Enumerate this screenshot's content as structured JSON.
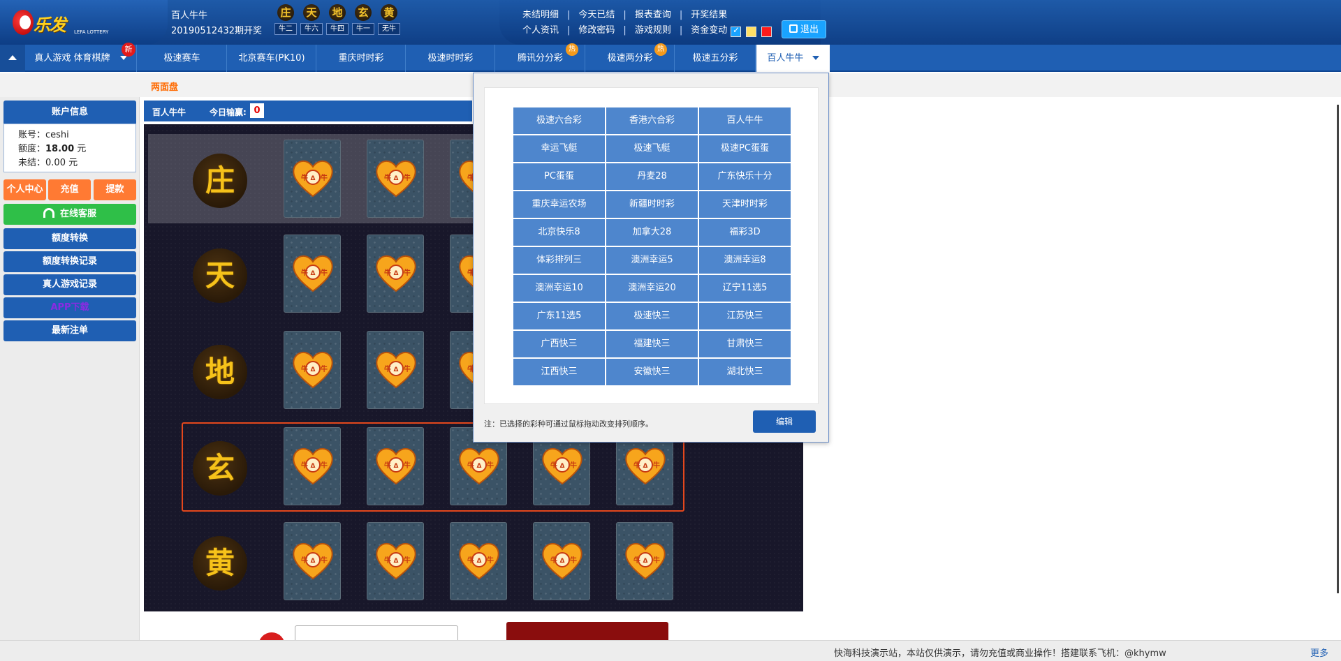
{
  "header": {
    "logo_text": "乐发",
    "logo_sub": "LEFA LOTTERY",
    "game_name": "百人牛牛",
    "draw_info": "20190512432期开奖",
    "faces": [
      {
        "top": "庄",
        "bottom": "牛二"
      },
      {
        "top": "天",
        "bottom": "牛六"
      },
      {
        "top": "地",
        "bottom": "牛四"
      },
      {
        "top": "玄",
        "bottom": "牛一"
      },
      {
        "top": "黄",
        "bottom": "无牛"
      }
    ],
    "links_row1": [
      "未结明细",
      "今天已结",
      "报表查询",
      "开奖结果"
    ],
    "links_row2": [
      "个人资讯",
      "修改密码",
      "游戏规则",
      "资金变动"
    ],
    "logout": "退出",
    "theme_colors": [
      "#1aa3ff",
      "#ffe066",
      "#ff1a1a"
    ]
  },
  "nav": {
    "items": [
      "真人游戏 体育棋牌",
      "极速赛车",
      "北京赛车(PK10)",
      "重庆时时彩",
      "极速时时彩",
      "腾讯分分彩",
      "极速两分彩",
      "极速五分彩",
      "百人牛牛"
    ],
    "badge_new": "新",
    "badge_hot": "热"
  },
  "subbar": {
    "tab": "两面盘"
  },
  "sidebar": {
    "account_title": "账户信息",
    "account_label": "账号：",
    "account_value": "ceshi",
    "credit_label": "额度：",
    "credit_value": "18.00",
    "credit_unit": " 元",
    "unsettled_label": "未结：",
    "unsettled_value": "0.00 元",
    "btn_personal": "个人中心",
    "btn_deposit": "充值",
    "btn_withdraw": "提款",
    "btn_service": "在线客服",
    "btn_transfer": "额度转换",
    "btn_transfer_log": "额度转换记录",
    "btn_live_log": "真人游戏记录",
    "btn_app": "APP下载",
    "btn_latest": "最新注单"
  },
  "main": {
    "title": "百人牛牛",
    "today_label": "今日输赢:",
    "today_value": "0",
    "rows": [
      "庄",
      "天",
      "地",
      "玄",
      "黄"
    ],
    "card_label": "牛牛"
  },
  "popup": {
    "games": [
      "极速六合彩",
      "香港六合彩",
      "百人牛牛",
      "幸运飞艇",
      "极速飞艇",
      "极速PC蛋蛋",
      "PC蛋蛋",
      "丹麦28",
      "广东快乐十分",
      "重庆幸运农场",
      "新疆时时彩",
      "天津时时彩",
      "北京快乐8",
      "加拿大28",
      "福彩3D",
      "体彩排列三",
      "澳洲幸运5",
      "澳洲幸运8",
      "澳洲幸运10",
      "澳洲幸运20",
      "辽宁11选5",
      "广东11选5",
      "极速快三",
      "江苏快三",
      "广西快三",
      "福建快三",
      "甘肃快三",
      "江西快三",
      "安徽快三",
      "湖北快三"
    ],
    "note": "注：已选择的彩种可通过鼠标拖动改变排列顺序。",
    "edit": "编辑"
  },
  "footer": {
    "message": "快海科技演示站，本站仅供演示，请勿充值或商业操作！搭建联系飞机：@khymw",
    "more": "更多"
  }
}
